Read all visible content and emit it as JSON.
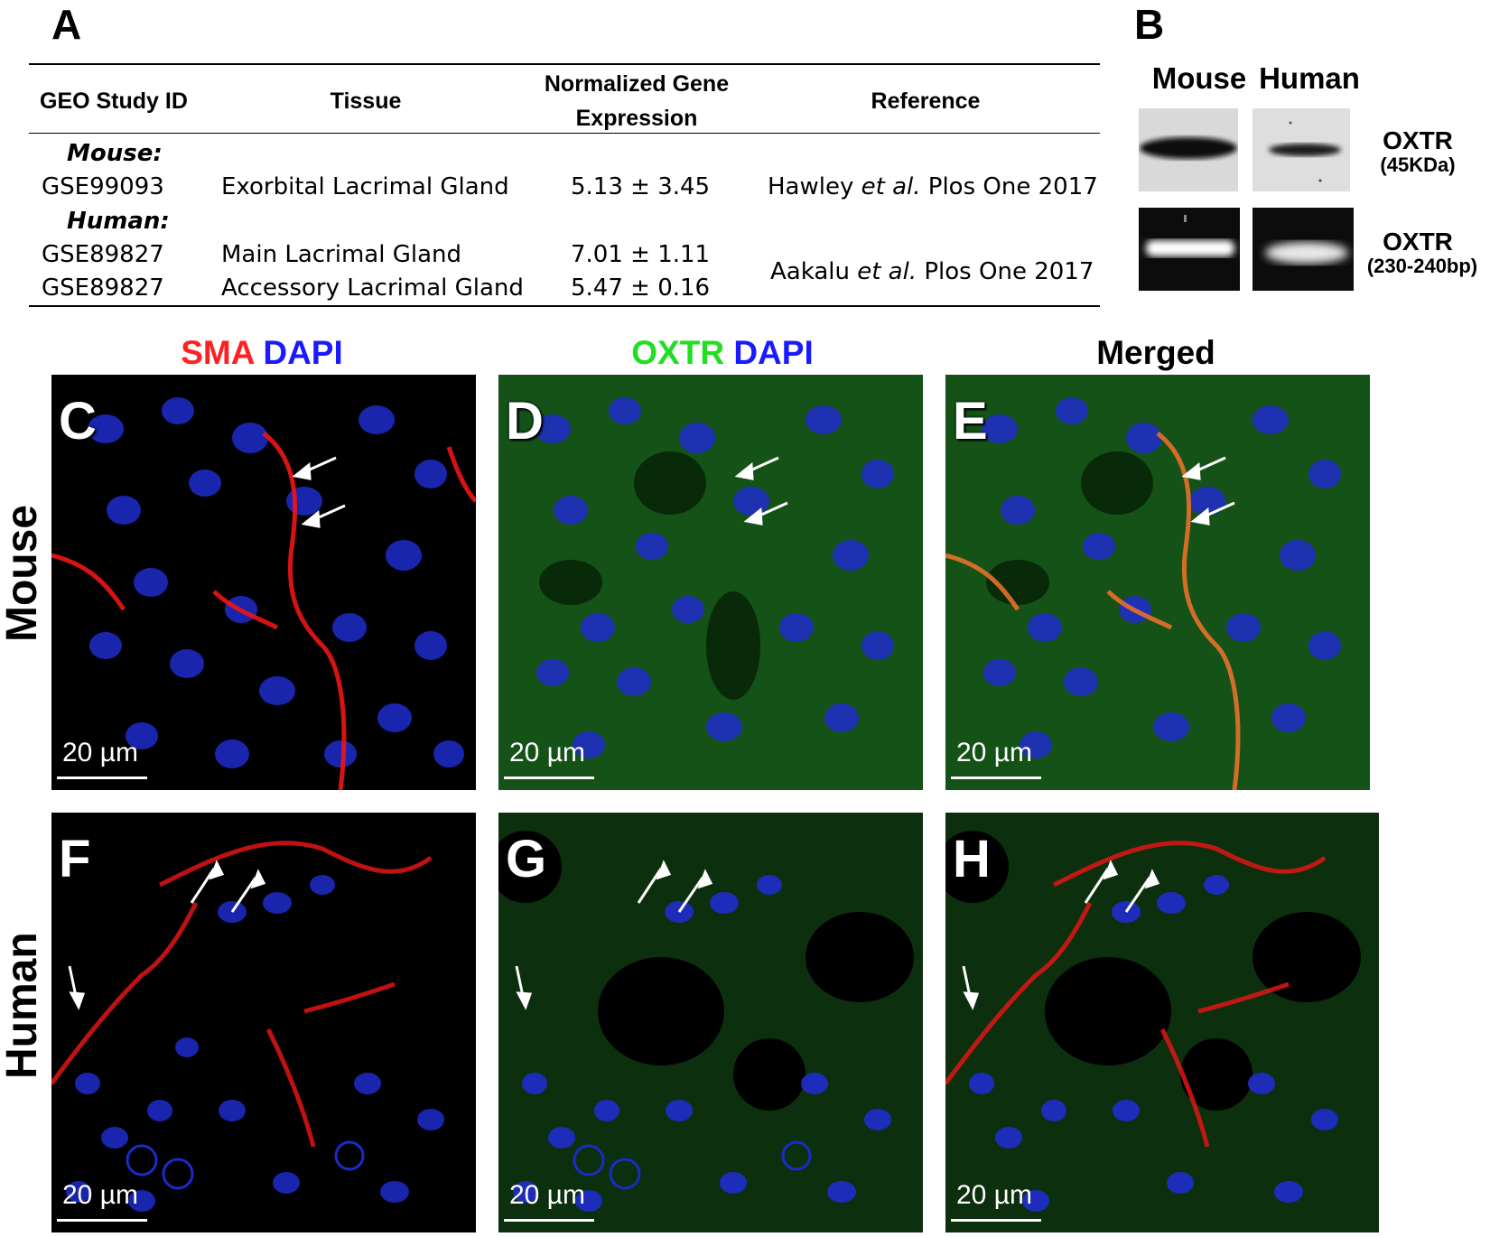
{
  "panel_a": {
    "letter": "A",
    "headers": {
      "study_id": "GEO Study ID",
      "tissue": "Tissue",
      "expression_line1": "Normalized Gene",
      "expression_line2": "Expression",
      "reference": "Reference"
    },
    "mouse_label": "Mouse:",
    "human_label": "Human:",
    "rows": [
      {
        "id": "GSE99093",
        "tissue": "Exorbital Lacrimal Gland",
        "value": "5.13 ± 3.45",
        "ref_author": "Hawley ",
        "ref_etal": "et al.",
        "ref_rest": " Plos One 2017"
      },
      {
        "id": "GSE89827",
        "tissue": "Main Lacrimal Gland",
        "value": "7.01 ± 1.11"
      },
      {
        "id": "GSE89827",
        "tissue": "Accessory Lacrimal Gland",
        "value": "5.47 ± 0.16"
      }
    ],
    "human_ref": {
      "author": "Aakalu ",
      "etal": "et al.",
      "rest": " Plos One 2017"
    }
  },
  "panel_b": {
    "letter": "B",
    "col_mouse": "Mouse",
    "col_human": "Human",
    "western_label": "OXTR",
    "western_sub": "(45KDa)",
    "pcr_label": "OXTR",
    "pcr_sub": "(230-240bp)"
  },
  "columns": {
    "c1_part1": "SMA",
    "c1_part2": "DAPI",
    "c2_part1": "OXTR",
    "c2_part2": "DAPI",
    "c3": "Merged",
    "color_red": "#ff2020",
    "color_blue": "#1a1aff",
    "color_green": "#22dd22"
  },
  "rows": {
    "mouse": "Mouse",
    "human": "Human"
  },
  "panels": {
    "C": "C",
    "D": "D",
    "E": "E",
    "F": "F",
    "G": "G",
    "H": "H",
    "scale": "20 µm"
  }
}
